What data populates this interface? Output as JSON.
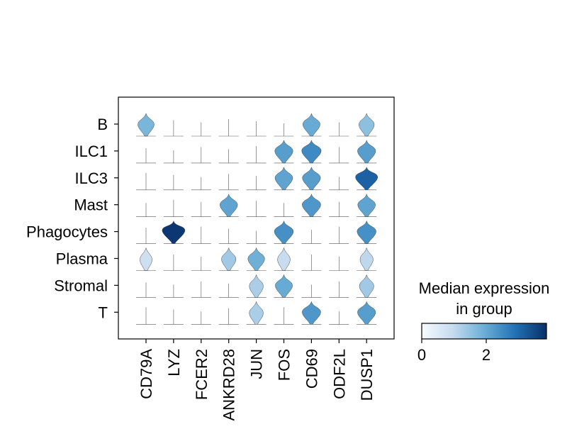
{
  "chart_data": {
    "type": "stacked-violin",
    "title": "",
    "xlabel": "",
    "ylabel": "",
    "genes": [
      "CD79A",
      "LYZ",
      "FCER2",
      "ANKRD28",
      "JUN",
      "FOS",
      "CD69",
      "ODF2L",
      "DUSP1"
    ],
    "groups": [
      "B",
      "ILC1",
      "ILC3",
      "Mast",
      "Phagocytes",
      "Plasma",
      "Stromal",
      "T"
    ],
    "median_expression": [
      [
        1.7,
        0,
        0,
        0,
        0,
        0,
        1.9,
        0,
        1.5
      ],
      [
        0,
        0,
        0,
        0,
        0,
        2.1,
        2.4,
        0,
        2.1
      ],
      [
        0,
        0,
        0,
        0,
        0,
        2.0,
        2.1,
        0,
        3.0
      ],
      [
        0,
        0,
        0,
        2.0,
        0,
        0,
        2.2,
        0,
        2.0
      ],
      [
        0,
        3.6,
        0,
        0,
        0,
        2.3,
        0,
        0,
        2.3
      ],
      [
        0.8,
        0,
        0,
        1.3,
        1.8,
        0.9,
        0,
        0,
        1.0
      ],
      [
        0,
        0,
        0,
        0,
        1.2,
        1.9,
        0,
        0,
        1.3
      ],
      [
        0,
        0,
        0,
        0,
        1.2,
        0,
        2.2,
        0,
        2.1
      ]
    ],
    "colorbar": {
      "title": "Median expression\nin group",
      "ticks": [
        0,
        2
      ],
      "range": [
        0,
        3.7
      ],
      "colors": [
        "#f7fbff",
        "#c6dbef",
        "#6baed6",
        "#2171b5",
        "#08306b"
      ]
    }
  },
  "labels": {
    "colorbar_title_line1": "Median expression",
    "colorbar_title_line2": "in group",
    "tick_0": "0",
    "tick_2": "2"
  }
}
